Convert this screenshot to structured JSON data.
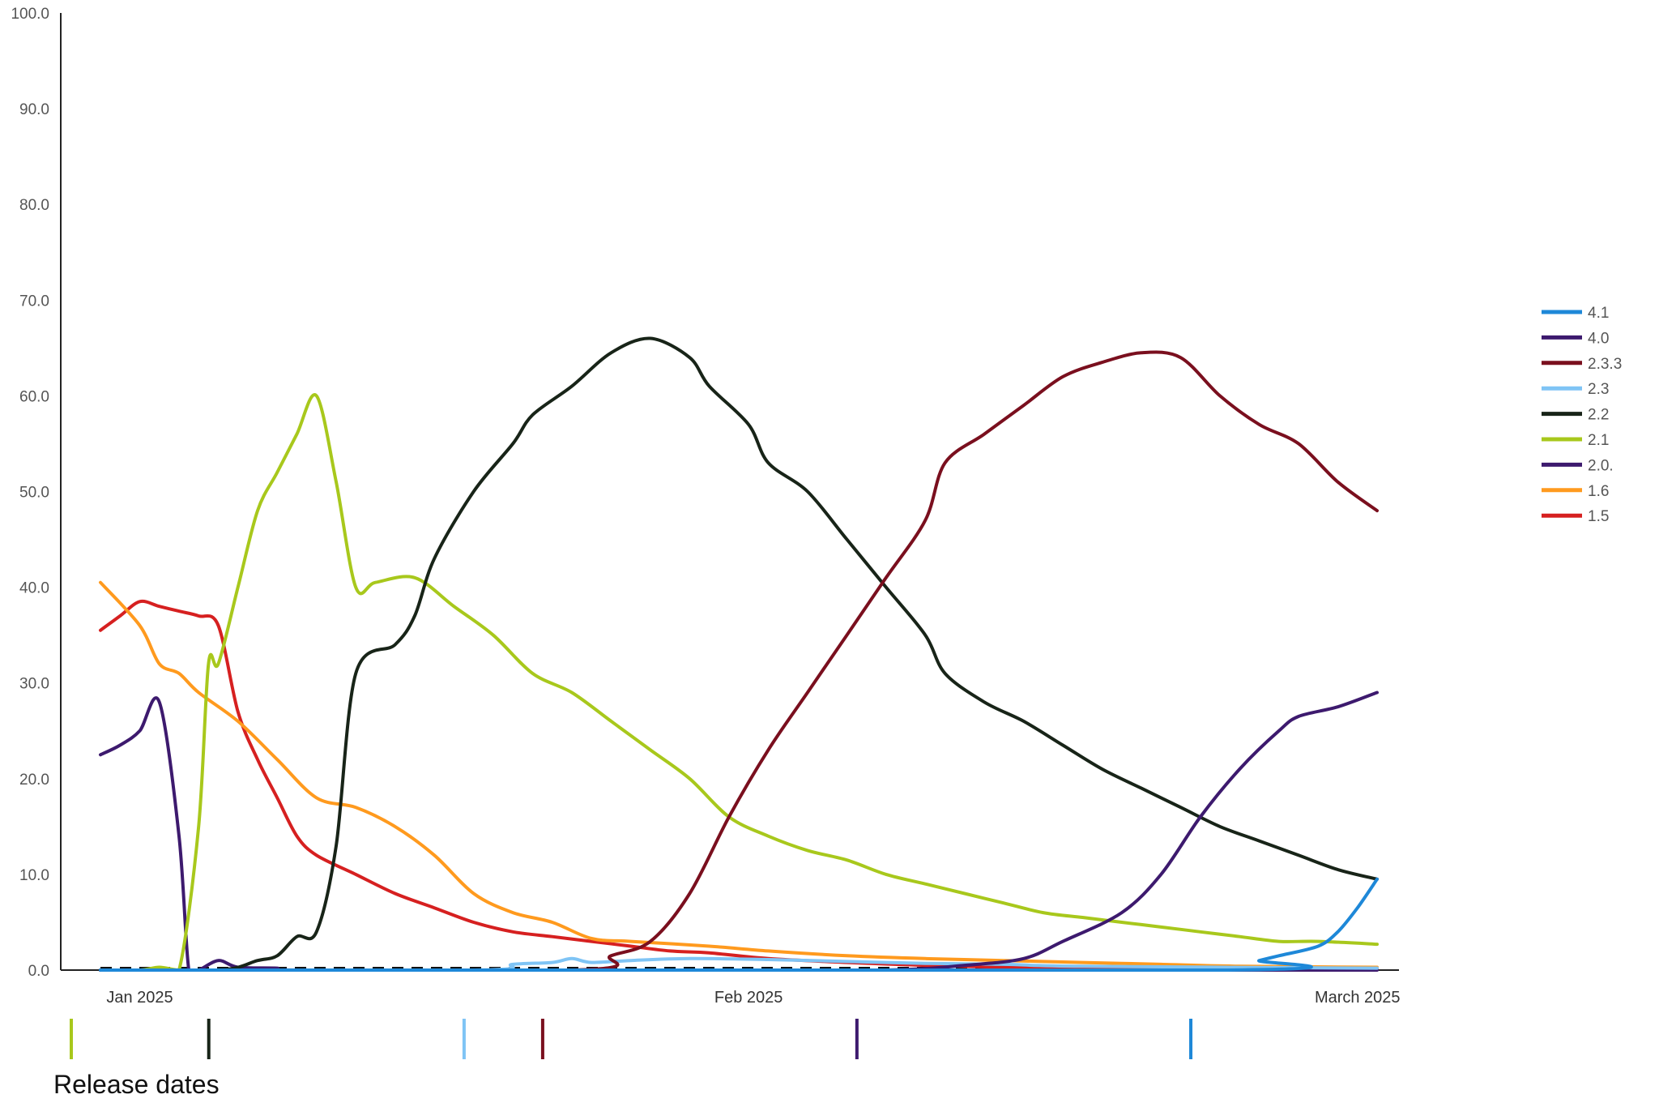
{
  "chart_data": {
    "type": "line",
    "title": "",
    "xlabel": "",
    "ylabel": "",
    "ylim": [
      0,
      100
    ],
    "x_range": [
      "2025-01-01",
      "2025-03-07"
    ],
    "grid": false,
    "legend_placement": "right",
    "y_ticks": [
      "0.0",
      "10.0",
      "20.0",
      "30.0",
      "40.0",
      "50.0",
      "60.0",
      "70.0",
      "80.0",
      "90.0",
      "100.0"
    ],
    "x_ticks": [
      {
        "date": "2025-01-03",
        "label": "Jan 2025"
      },
      {
        "date": "2025-02-03",
        "label": "Feb 2025"
      },
      {
        "date": "2025-03-06",
        "label": "March 2025"
      }
    ],
    "series": [
      {
        "name": "4.1",
        "color": "#1e88d8",
        "points": [
          [
            "2025-01-01",
            0
          ],
          [
            "2025-02-27",
            0
          ],
          [
            "2025-02-29",
            1
          ],
          [
            "2025-03-02",
            1.5
          ],
          [
            "2025-03-04",
            2.5
          ],
          [
            "2025-03-05",
            4
          ],
          [
            "2025-03-06",
            6.5
          ],
          [
            "2025-03-07",
            9.5
          ]
        ]
      },
      {
        "name": "4.0",
        "color": "#3d1a6e",
        "points": [
          [
            "2025-01-01",
            0
          ],
          [
            "2025-02-01",
            0
          ],
          [
            "2025-02-10",
            0
          ],
          [
            "2025-02-14",
            0.5
          ],
          [
            "2025-02-17",
            1.2
          ],
          [
            "2025-02-19",
            3
          ],
          [
            "2025-02-22",
            6
          ],
          [
            "2025-02-24",
            10
          ],
          [
            "2025-02-26",
            16
          ],
          [
            "2025-02-28",
            21
          ],
          [
            "2025-03-02",
            25
          ],
          [
            "2025-03-03",
            26.5
          ],
          [
            "2025-03-05",
            27.5
          ],
          [
            "2025-03-07",
            29
          ]
        ]
      },
      {
        "name": "2.3.3",
        "color": "#7a0f1e",
        "points": [
          [
            "2025-01-01",
            0
          ],
          [
            "2025-01-25",
            0
          ],
          [
            "2025-01-27",
            1.5
          ],
          [
            "2025-01-29",
            3
          ],
          [
            "2025-01-31",
            8
          ],
          [
            "2025-02-02",
            16
          ],
          [
            "2025-02-04",
            23
          ],
          [
            "2025-02-06",
            29
          ],
          [
            "2025-02-08",
            35
          ],
          [
            "2025-02-10",
            41
          ],
          [
            "2025-02-12",
            47
          ],
          [
            "2025-02-13",
            53
          ],
          [
            "2025-02-15",
            56
          ],
          [
            "2025-02-17",
            59
          ],
          [
            "2025-02-19",
            62
          ],
          [
            "2025-02-21",
            63.5
          ],
          [
            "2025-02-23",
            64.5
          ],
          [
            "2025-02-25",
            64
          ],
          [
            "2025-02-27",
            60
          ],
          [
            "2025-03-01",
            57
          ],
          [
            "2025-03-03",
            55
          ],
          [
            "2025-03-05",
            51
          ],
          [
            "2025-03-07",
            48
          ]
        ]
      },
      {
        "name": "2.3",
        "color": "#7fc4f5",
        "points": [
          [
            "2025-01-01",
            0
          ],
          [
            "2025-01-20",
            0
          ],
          [
            "2025-01-22",
            0.6
          ],
          [
            "2025-01-24",
            0.8
          ],
          [
            "2025-01-25",
            1.2
          ],
          [
            "2025-01-26",
            0.8
          ],
          [
            "2025-01-28",
            1
          ],
          [
            "2025-01-31",
            1.2
          ],
          [
            "2025-02-04",
            1.1
          ],
          [
            "2025-02-08",
            0.9
          ],
          [
            "2025-02-12",
            0.7
          ],
          [
            "2025-02-16",
            0.6
          ],
          [
            "2025-02-20",
            0.4
          ],
          [
            "2025-03-07",
            0.2
          ]
        ]
      },
      {
        "name": "2.2",
        "color": "#182418",
        "points": [
          [
            "2025-01-01",
            0
          ],
          [
            "2025-01-07",
            0
          ],
          [
            "2025-01-09",
            1
          ],
          [
            "2025-01-10",
            1.5
          ],
          [
            "2025-01-11",
            3.5
          ],
          [
            "2025-01-12",
            4
          ],
          [
            "2025-01-13",
            13
          ],
          [
            "2025-01-14",
            31
          ],
          [
            "2025-01-16",
            34
          ],
          [
            "2025-01-17",
            37
          ],
          [
            "2025-01-18",
            43
          ],
          [
            "2025-01-20",
            50
          ],
          [
            "2025-01-22",
            55
          ],
          [
            "2025-01-23",
            58
          ],
          [
            "2025-01-25",
            61
          ],
          [
            "2025-01-27",
            64.5
          ],
          [
            "2025-01-29",
            66
          ],
          [
            "2025-01-31",
            64
          ],
          [
            "2025-02-01",
            61
          ],
          [
            "2025-02-03",
            57
          ],
          [
            "2025-02-04",
            53
          ],
          [
            "2025-02-06",
            50
          ],
          [
            "2025-02-08",
            45
          ],
          [
            "2025-02-10",
            40
          ],
          [
            "2025-02-12",
            35
          ],
          [
            "2025-02-13",
            31
          ],
          [
            "2025-02-15",
            28
          ],
          [
            "2025-02-17",
            26
          ],
          [
            "2025-02-19",
            23.5
          ],
          [
            "2025-02-21",
            21
          ],
          [
            "2025-02-23",
            19
          ],
          [
            "2025-02-25",
            17
          ],
          [
            "2025-02-27",
            15
          ],
          [
            "2025-03-01",
            13.5
          ],
          [
            "2025-03-03",
            12
          ],
          [
            "2025-03-05",
            10.5
          ],
          [
            "2025-03-07",
            9.5
          ]
        ]
      },
      {
        "name": "2.1",
        "color": "#a8c81c",
        "points": [
          [
            "2025-01-01",
            0
          ],
          [
            "2025-01-03",
            0
          ],
          [
            "2025-01-04",
            0.3
          ],
          [
            "2025-01-05",
            0
          ],
          [
            "2025-01-06",
            15
          ],
          [
            "2025-01-06.5",
            32
          ],
          [
            "2025-01-07",
            32
          ],
          [
            "2025-01-08",
            40
          ],
          [
            "2025-01-09",
            48
          ],
          [
            "2025-01-10",
            52
          ],
          [
            "2025-01-11",
            56
          ],
          [
            "2025-01-12",
            60
          ],
          [
            "2025-01-13",
            51
          ],
          [
            "2025-01-14",
            40
          ],
          [
            "2025-01-15",
            40.5
          ],
          [
            "2025-01-17",
            41
          ],
          [
            "2025-01-19",
            38
          ],
          [
            "2025-01-21",
            35
          ],
          [
            "2025-01-23",
            31
          ],
          [
            "2025-01-25",
            29
          ],
          [
            "2025-01-27",
            26
          ],
          [
            "2025-01-29",
            23
          ],
          [
            "2025-01-31",
            20
          ],
          [
            "2025-02-02",
            16
          ],
          [
            "2025-02-04",
            14
          ],
          [
            "2025-02-06",
            12.5
          ],
          [
            "2025-02-08",
            11.5
          ],
          [
            "2025-02-10",
            10
          ],
          [
            "2025-02-12",
            9
          ],
          [
            "2025-02-14",
            8
          ],
          [
            "2025-02-16",
            7
          ],
          [
            "2025-02-18",
            6
          ],
          [
            "2025-02-20",
            5.5
          ],
          [
            "2025-02-22",
            5
          ],
          [
            "2025-02-24",
            4.5
          ],
          [
            "2025-02-26",
            4
          ],
          [
            "2025-02-28",
            3.5
          ],
          [
            "2025-03-02",
            3
          ],
          [
            "2025-03-04",
            3
          ],
          [
            "2025-03-07",
            2.7
          ]
        ]
      },
      {
        "name": "2.0.",
        "color": "#3d1a6e",
        "points": [
          [
            "2025-01-01",
            22.5
          ],
          [
            "2025-01-02",
            23.5
          ],
          [
            "2025-01-03",
            25
          ],
          [
            "2025-01-04",
            28
          ],
          [
            "2025-01-05",
            14
          ],
          [
            "2025-01-05.5",
            0
          ],
          [
            "2025-01-06",
            0
          ],
          [
            "2025-01-07",
            1
          ],
          [
            "2025-01-08",
            0.3
          ],
          [
            "2025-01-10",
            0.2
          ],
          [
            "2025-01-12",
            0
          ],
          [
            "2025-03-07",
            0
          ]
        ]
      },
      {
        "name": "1.6",
        "color": "#ff9a1e",
        "points": [
          [
            "2025-01-01",
            40.5
          ],
          [
            "2025-01-03",
            36
          ],
          [
            "2025-01-04",
            32
          ],
          [
            "2025-01-05",
            31
          ],
          [
            "2025-01-06",
            29
          ],
          [
            "2025-01-08",
            26
          ],
          [
            "2025-01-10",
            22
          ],
          [
            "2025-01-12",
            18
          ],
          [
            "2025-01-14",
            17
          ],
          [
            "2025-01-16",
            15
          ],
          [
            "2025-01-18",
            12
          ],
          [
            "2025-01-20",
            8
          ],
          [
            "2025-01-22",
            6
          ],
          [
            "2025-01-24",
            5
          ],
          [
            "2025-01-26",
            3.3
          ],
          [
            "2025-01-28",
            3
          ],
          [
            "2025-02-01",
            2.5
          ],
          [
            "2025-02-04",
            2
          ],
          [
            "2025-02-08",
            1.5
          ],
          [
            "2025-02-12",
            1.2
          ],
          [
            "2025-02-16",
            1
          ],
          [
            "2025-02-20",
            0.8
          ],
          [
            "2025-02-24",
            0.6
          ],
          [
            "2025-02-28",
            0.4
          ],
          [
            "2025-03-07",
            0.3
          ]
        ]
      },
      {
        "name": "1.5",
        "color": "#d62020",
        "points": [
          [
            "2025-01-01",
            35.5
          ],
          [
            "2025-01-02",
            37
          ],
          [
            "2025-01-03",
            38.5
          ],
          [
            "2025-01-04",
            38
          ],
          [
            "2025-01-05",
            37.5
          ],
          [
            "2025-01-06",
            37
          ],
          [
            "2025-01-07",
            36
          ],
          [
            "2025-01-08",
            27
          ],
          [
            "2025-01-09",
            22
          ],
          [
            "2025-01-10",
            18
          ],
          [
            "2025-01-11",
            14
          ],
          [
            "2025-01-12",
            12
          ],
          [
            "2025-01-14",
            10
          ],
          [
            "2025-01-16",
            8
          ],
          [
            "2025-01-18",
            6.5
          ],
          [
            "2025-01-20",
            5
          ],
          [
            "2025-01-22",
            4
          ],
          [
            "2025-01-24",
            3.5
          ],
          [
            "2025-01-26",
            3
          ],
          [
            "2025-01-28",
            2.5
          ],
          [
            "2025-01-30",
            2
          ],
          [
            "2025-02-01",
            1.8
          ],
          [
            "2025-02-04",
            1.2
          ],
          [
            "2025-02-08",
            0.8
          ],
          [
            "2025-02-12",
            0.5
          ],
          [
            "2025-02-16",
            0.3
          ],
          [
            "2025-02-20",
            0.2
          ],
          [
            "2025-03-07",
            0.1
          ]
        ]
      }
    ],
    "release_dates": {
      "label": "Release dates",
      "markers": [
        {
          "date": "2025-01-01",
          "color": "#a8c81c"
        },
        {
          "date": "2025-01-08",
          "color": "#182418"
        },
        {
          "date": "2025-01-21",
          "color": "#7fc4f5"
        },
        {
          "date": "2025-01-25",
          "color": "#7a0f1e"
        },
        {
          "date": "2025-02-10",
          "color": "#3d1a6e"
        },
        {
          "date": "2025-02-27",
          "color": "#1e88d8"
        }
      ]
    }
  }
}
